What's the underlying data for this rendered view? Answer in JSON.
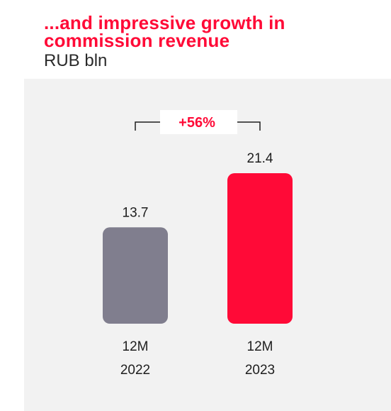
{
  "header": {
    "title_line1": "...and impressive growth in",
    "title_line2": "commission revenue",
    "unit": "RUB bln"
  },
  "chart_data": {
    "type": "bar",
    "categories": [
      {
        "line1": "12M",
        "line2": "2022"
      },
      {
        "line1": "12M",
        "line2": "2023"
      }
    ],
    "values": [
      13.7,
      21.4
    ],
    "value_labels": [
      "13.7",
      "21.4"
    ],
    "colors": [
      "#807e8e",
      "#ff0a37"
    ],
    "annotation": "+56%",
    "ylim": [
      0,
      21.4
    ]
  },
  "colors": {
    "accent": "#ff0a37",
    "panel": "#f2f2f2"
  }
}
